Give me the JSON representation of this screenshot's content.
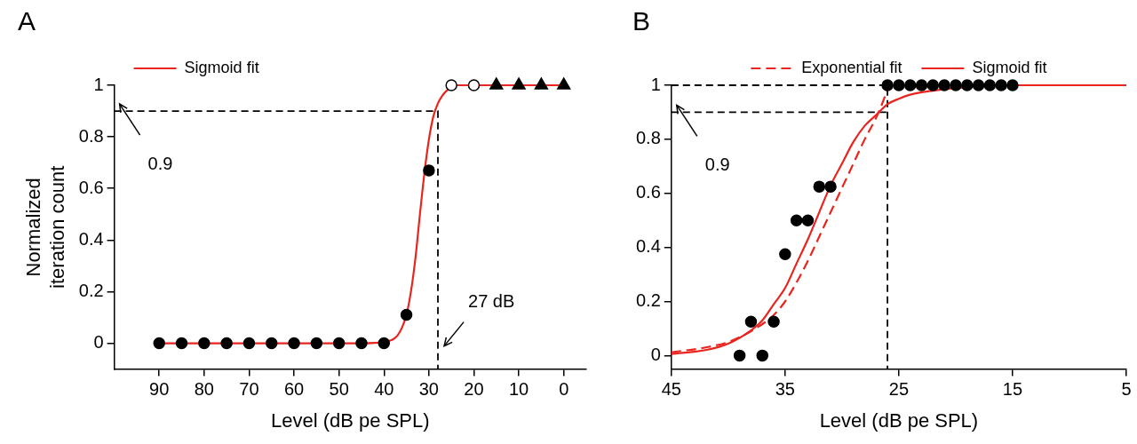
{
  "chart_data": [
    {
      "type": "scatter",
      "title": "A",
      "xlabel": "Level (dB pe SPL)",
      "ylabel": [
        "Normalized",
        "iteration count"
      ],
      "xlim": [
        100,
        -5
      ],
      "xticks": [
        90,
        80,
        70,
        60,
        50,
        40,
        30,
        20,
        10,
        0
      ],
      "ylim": [
        -0.1,
        1
      ],
      "yticks": [
        0,
        0.2,
        0.4,
        0.6,
        0.8,
        1
      ],
      "grid": false,
      "legend": "top-left",
      "series": [
        {
          "type": "line",
          "color": "#000000",
          "line_style": "dashed",
          "marker": "none",
          "x": [
            100,
            28,
            28
          ],
          "values": [
            0.9,
            0.9,
            -0.1
          ]
        },
        {
          "name": "Sigmoid fit",
          "type": "line",
          "color": "#e8251f",
          "line_style": "solid",
          "marker": "none",
          "x": [
            90,
            60,
            45,
            40,
            38,
            37,
            36,
            35,
            34,
            33,
            32,
            31,
            30,
            29,
            28,
            27,
            26,
            25,
            24,
            22,
            20,
            10,
            0
          ],
          "values": [
            0,
            0,
            0,
            0.005,
            0.015,
            0.03,
            0.06,
            0.11,
            0.2,
            0.33,
            0.5,
            0.66,
            0.79,
            0.88,
            0.93,
            0.96,
            0.98,
            0.99,
            1,
            1,
            1,
            1,
            1
          ]
        },
        {
          "type": "scatter",
          "color": "#000000",
          "marker": "circle",
          "x": [
            90,
            85,
            80,
            75,
            70,
            65,
            60,
            55,
            50,
            45,
            40,
            35,
            30
          ],
          "values": [
            0,
            0,
            0,
            0,
            0,
            0,
            0,
            0,
            0,
            0,
            0,
            0.11,
            0.67
          ]
        },
        {
          "type": "scatter",
          "color": "#000000",
          "marker": "open_circle",
          "x": [
            25,
            20
          ],
          "values": [
            1,
            1
          ]
        },
        {
          "type": "scatter",
          "color": "#000000",
          "marker": "triangle",
          "x": [
            15,
            10,
            5,
            0
          ],
          "values": [
            1,
            1,
            1,
            1
          ]
        }
      ],
      "annotations": [
        {
          "text": "0.9",
          "y": 0.9
        },
        {
          "text": "27 dB",
          "x": 27
        }
      ]
    },
    {
      "type": "scatter",
      "title": "B",
      "xlabel": "Level (dB pe SPL)",
      "xlim": [
        45,
        5
      ],
      "xticks": [
        45,
        35,
        25,
        15,
        5
      ],
      "ylim": [
        -0.05,
        1
      ],
      "yticks": [
        0,
        0.2,
        0.4,
        0.6,
        0.8,
        1
      ],
      "grid": false,
      "legend": "top",
      "series": [
        {
          "type": "line",
          "color": "#000000",
          "line_style": "dashed",
          "marker": "none",
          "x": [
            45,
            26,
            26
          ],
          "values": [
            1,
            1,
            -0.05
          ]
        },
        {
          "type": "line",
          "color": "#000000",
          "line_style": "dashed",
          "marker": "none",
          "x": [
            45,
            26
          ],
          "values": [
            0.9,
            0.9
          ]
        },
        {
          "name": "Exponential fit",
          "type": "line",
          "color": "#e8251f",
          "line_style": "dashed",
          "marker": "none",
          "x": [
            45,
            42,
            40,
            38,
            36,
            35,
            34,
            33,
            32,
            31,
            30,
            29,
            28,
            27,
            26.3,
            25.9
          ],
          "values": [
            0.012,
            0.03,
            0.05,
            0.09,
            0.15,
            0.2,
            0.27,
            0.35,
            0.44,
            0.53,
            0.62,
            0.71,
            0.8,
            0.88,
            0.95,
            1
          ]
        },
        {
          "name": "Sigmoid fit",
          "type": "line",
          "color": "#e8251f",
          "line_style": "solid",
          "marker": "none",
          "x": [
            45,
            42,
            40,
            38,
            37,
            36,
            35,
            34,
            33,
            32,
            31,
            30,
            29,
            28,
            27,
            26,
            25,
            24,
            22,
            20,
            15,
            5
          ],
          "values": [
            0.006,
            0.02,
            0.044,
            0.093,
            0.13,
            0.19,
            0.25,
            0.34,
            0.43,
            0.53,
            0.63,
            0.71,
            0.79,
            0.85,
            0.89,
            0.93,
            0.95,
            0.965,
            0.98,
            0.99,
            1,
            1
          ]
        },
        {
          "type": "scatter",
          "color": "#000000",
          "marker": "circle",
          "x": [
            39,
            38,
            37,
            36,
            35,
            34,
            33,
            32,
            31,
            26,
            25,
            24,
            23,
            22,
            21,
            20,
            19,
            18,
            17,
            16,
            15
          ],
          "values": [
            0,
            0.125,
            0,
            0.125,
            0.375,
            0.5,
            0.5,
            0.625,
            0.625,
            1,
            1,
            1,
            1,
            1,
            1,
            1,
            1,
            1,
            1,
            1,
            1
          ]
        }
      ],
      "annotations": [
        {
          "text": "0.9",
          "y": 0.9
        }
      ]
    }
  ]
}
